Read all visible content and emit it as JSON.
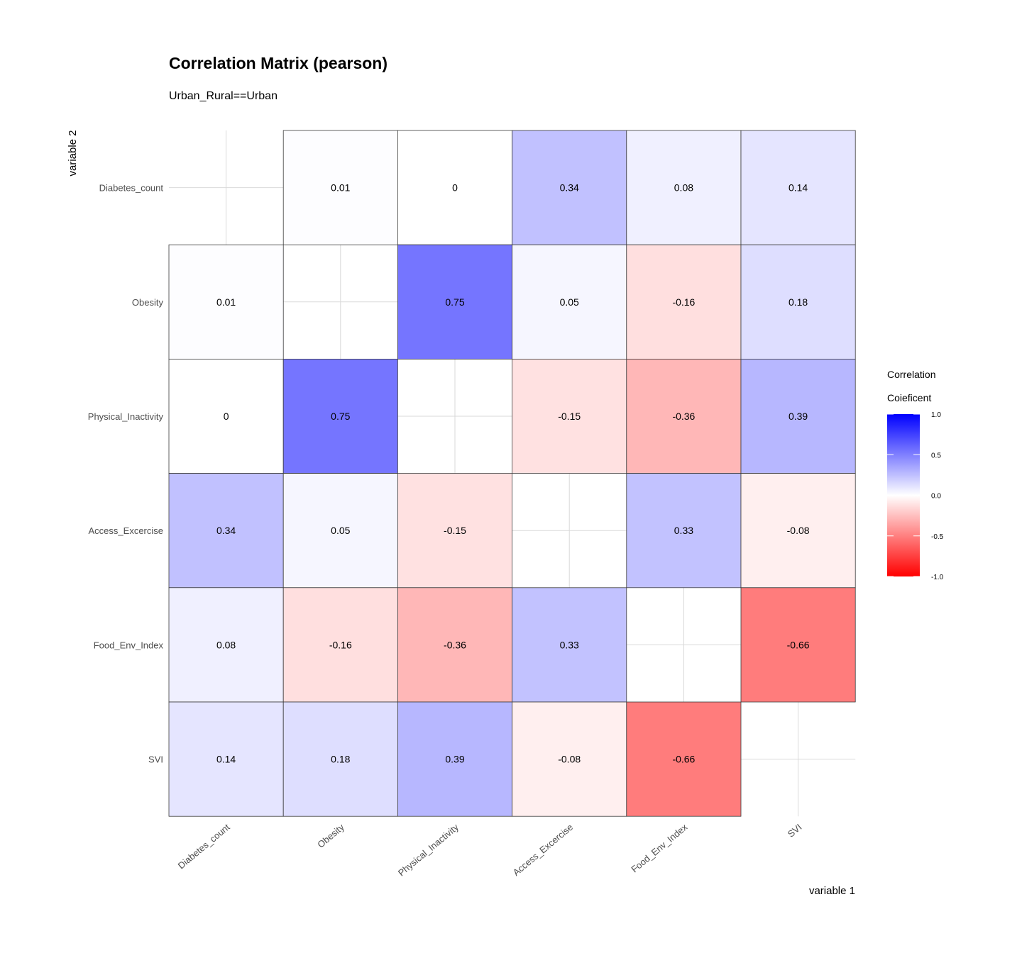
{
  "chart_data": {
    "type": "heatmap",
    "title": "Correlation Matrix (pearson)",
    "subtitle": "Urban_Rural==Urban",
    "xlabel": "variable 1",
    "ylabel": "variable 2",
    "variables": [
      "Diabetes_count",
      "Obesity",
      "Physical_Inactivity",
      "Access_Excercise",
      "Food_Env_Index",
      "SVI"
    ],
    "matrix": [
      [
        null,
        0.01,
        0,
        0.34,
        0.08,
        0.14
      ],
      [
        0.01,
        null,
        0.75,
        0.05,
        -0.16,
        0.18
      ],
      [
        0,
        0.75,
        null,
        -0.15,
        -0.36,
        0.39
      ],
      [
        0.34,
        0.05,
        -0.15,
        null,
        0.33,
        -0.08
      ],
      [
        0.08,
        -0.16,
        -0.36,
        0.33,
        null,
        -0.66
      ],
      [
        0.14,
        0.18,
        0.39,
        -0.08,
        -0.66,
        null
      ]
    ],
    "color_scale": {
      "low": "#ff0000",
      "mid": "#ffffff",
      "high": "#0000ff",
      "limits": [
        -1,
        1
      ]
    },
    "legend": {
      "title_line1": "Correlation",
      "title_line2": "Coieficent",
      "ticks": [
        1.0,
        0.5,
        0.0,
        -0.5,
        -1.0
      ],
      "tick_labels": [
        "1.0",
        "0.5",
        "0.0",
        "-0.5",
        "-1.0"
      ],
      "position": "right"
    },
    "grid": true
  }
}
